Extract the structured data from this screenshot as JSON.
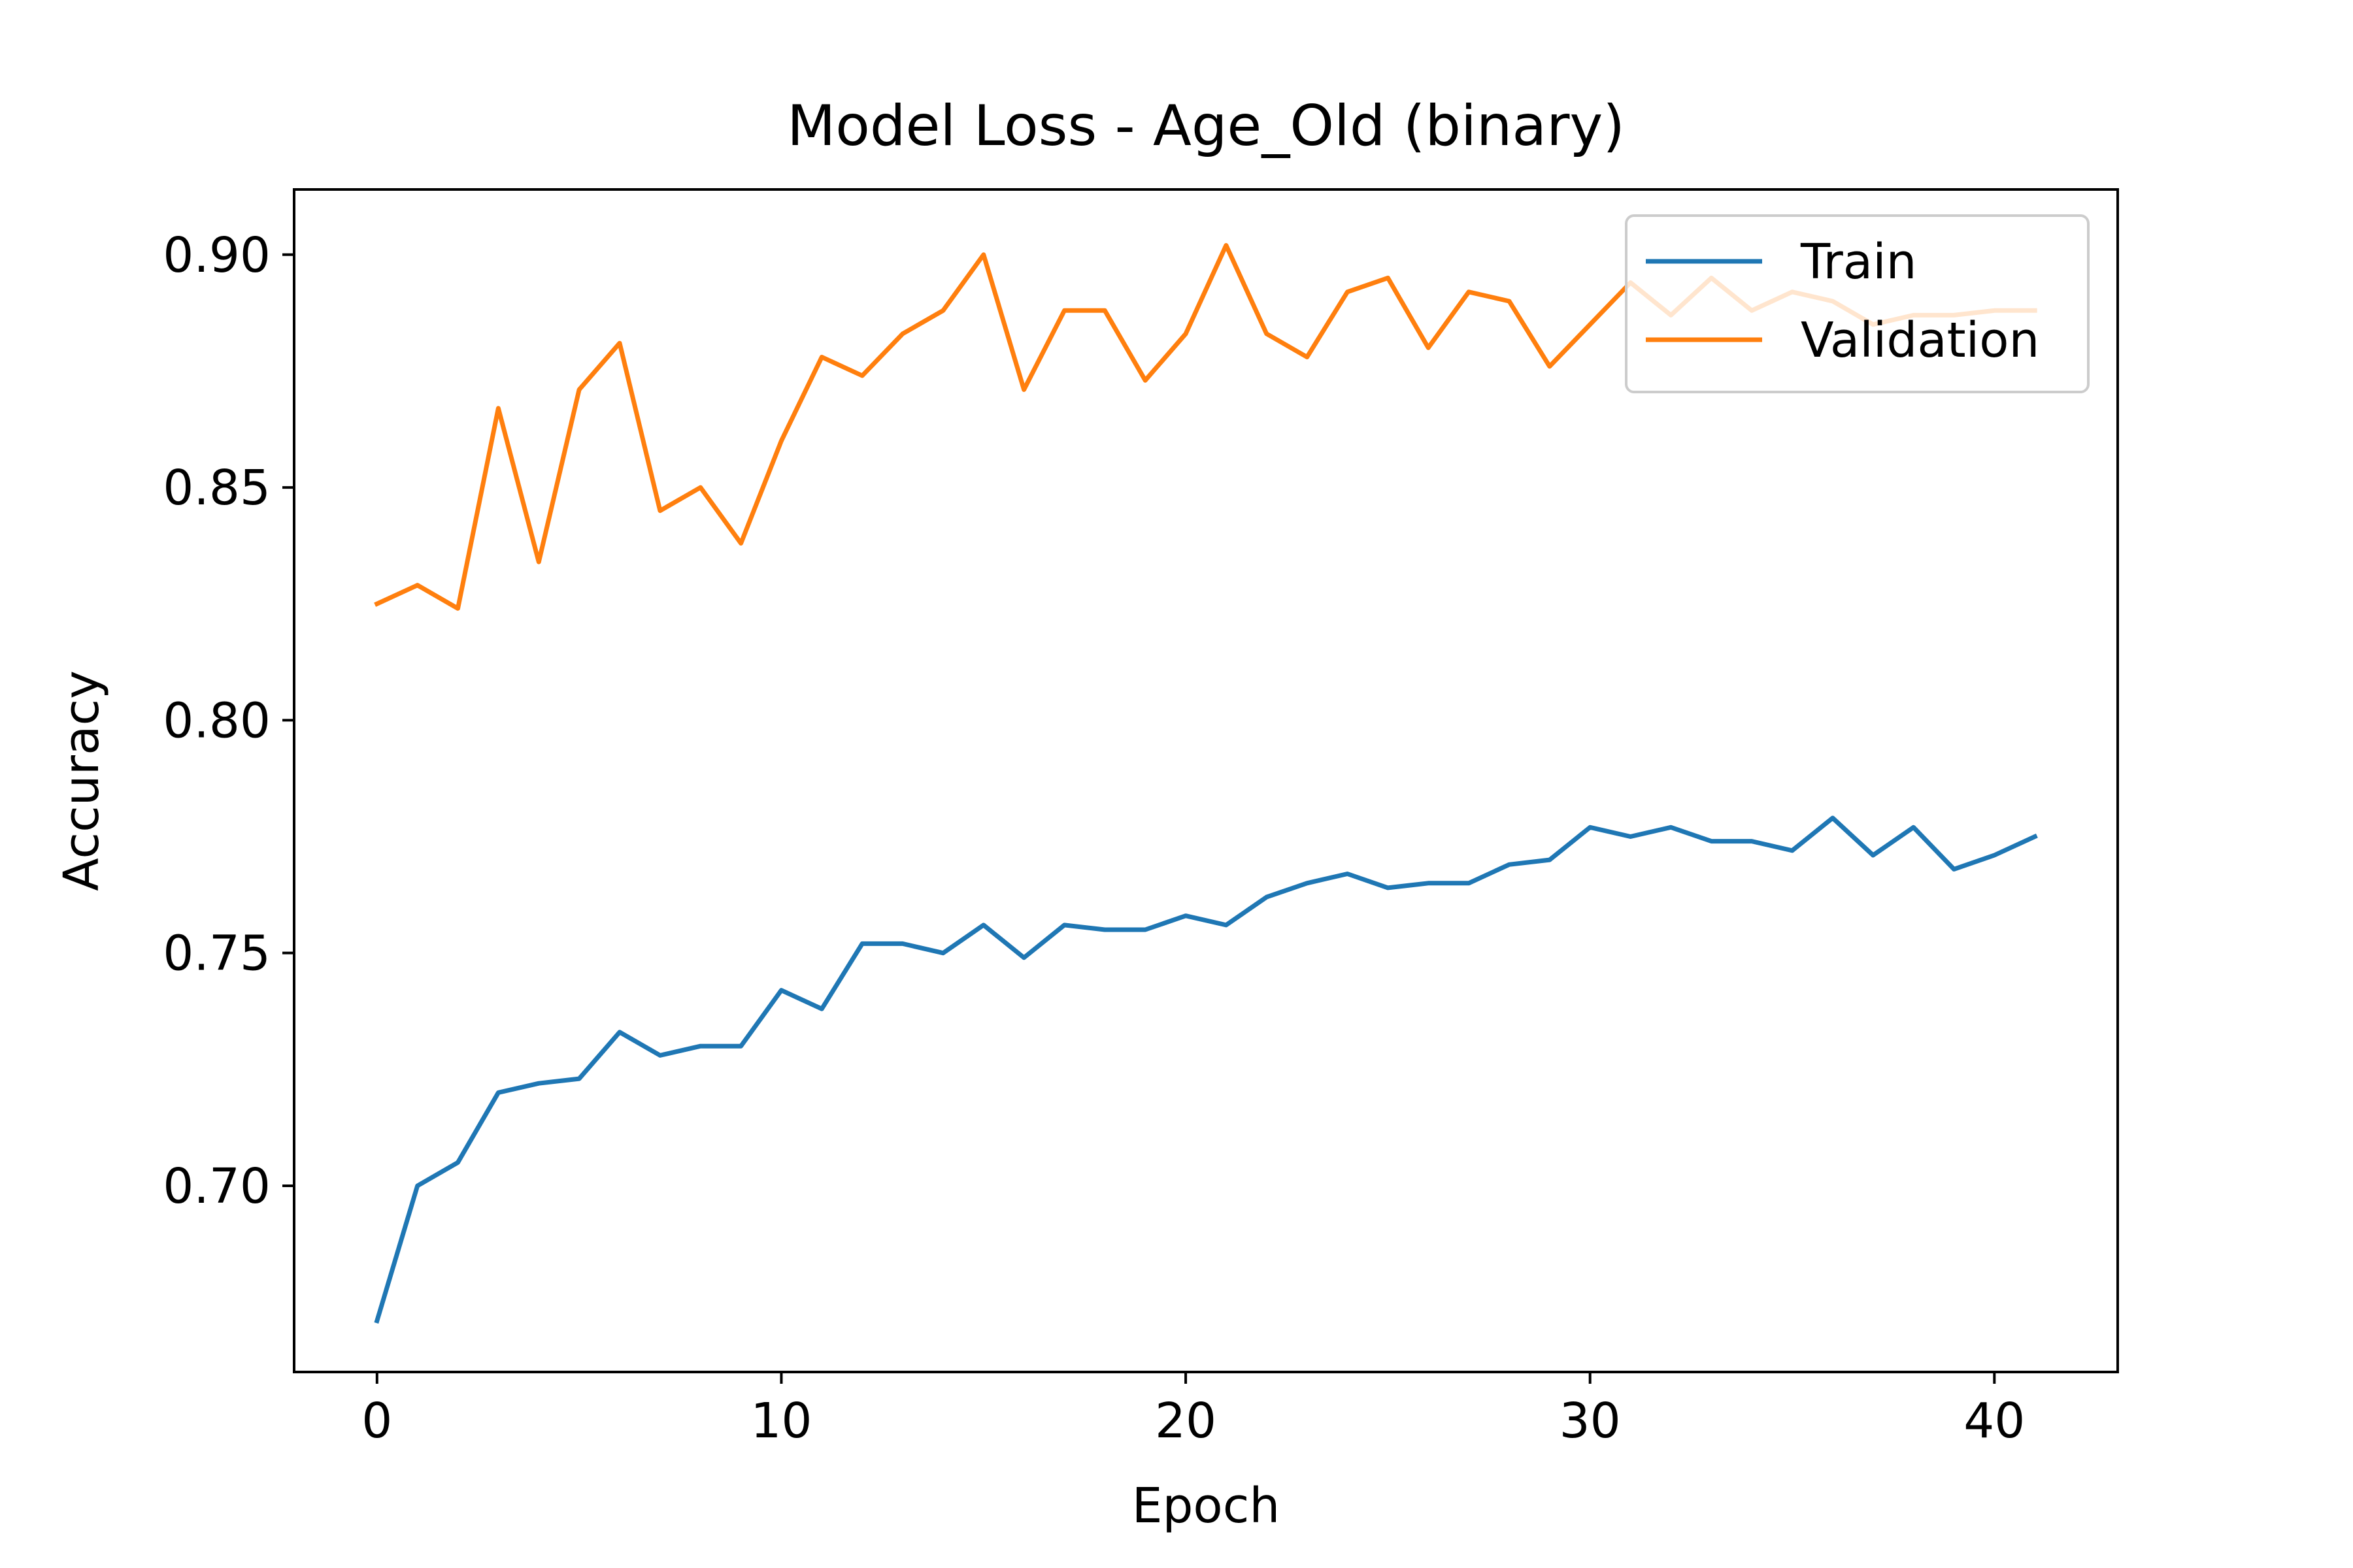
{
  "chart_data": {
    "type": "line",
    "title": "Model Loss - Age_Old (binary)",
    "xlabel": "Epoch",
    "ylabel": "Accuracy",
    "xlim": [
      -2.05,
      43.05
    ],
    "ylim": [
      0.66,
      0.914
    ],
    "xticks": [
      0,
      10,
      20,
      30,
      40
    ],
    "xtick_labels": [
      "0",
      "10",
      "20",
      "30",
      "40"
    ],
    "yticks": [
      0.7,
      0.75,
      0.8,
      0.85,
      0.9
    ],
    "ytick_labels": [
      "0.70",
      "0.75",
      "0.80",
      "0.85",
      "0.90"
    ],
    "grid": false,
    "legend_position": "top-right",
    "x": [
      0,
      1,
      2,
      3,
      4,
      5,
      6,
      7,
      8,
      9,
      10,
      11,
      12,
      13,
      14,
      15,
      16,
      17,
      18,
      19,
      20,
      21,
      22,
      23,
      24,
      25,
      26,
      27,
      28,
      29,
      30,
      31,
      32,
      33,
      34,
      35,
      36,
      37,
      38,
      39,
      40,
      41
    ],
    "series": [
      {
        "name": "Train",
        "color": "#1f77b4",
        "values": [
          0.671,
          0.7,
          0.705,
          0.72,
          0.722,
          0.723,
          0.733,
          0.728,
          0.73,
          0.73,
          0.742,
          0.738,
          0.752,
          0.752,
          0.75,
          0.756,
          0.749,
          0.756,
          0.755,
          0.755,
          0.758,
          0.756,
          0.762,
          0.765,
          0.767,
          0.764,
          0.765,
          0.765,
          0.769,
          0.77,
          0.777,
          0.775,
          0.777,
          0.774,
          0.774,
          0.772,
          0.779,
          0.771,
          0.777,
          0.768,
          0.771,
          0.775
        ]
      },
      {
        "name": "Validation",
        "color": "#ff7f0e",
        "values": [
          0.825,
          0.829,
          0.824,
          0.867,
          0.834,
          0.871,
          0.881,
          0.845,
          0.85,
          0.838,
          0.86,
          0.878,
          0.874,
          0.883,
          0.888,
          0.9,
          0.871,
          0.888,
          0.888,
          0.873,
          0.883,
          0.902,
          0.883,
          0.878,
          0.892,
          0.895,
          0.88,
          0.892,
          0.89,
          0.876,
          0.885,
          0.894,
          0.887,
          0.895,
          0.888,
          0.892,
          0.89,
          0.885,
          0.887,
          0.887,
          0.888,
          0.888
        ]
      }
    ]
  }
}
